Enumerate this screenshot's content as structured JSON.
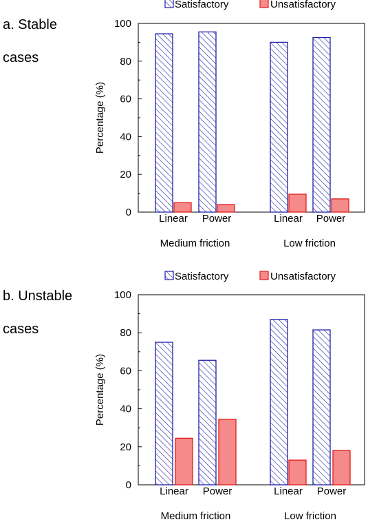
{
  "panels": [
    {
      "label_line1": "a. Stable",
      "label_line2": "cases"
    },
    {
      "label_line1": "b. Unstable",
      "label_line2": "cases"
    }
  ],
  "colors": {
    "satisfactory_stroke": "#1f1fa8",
    "unsatisfactory_fill": "#f58a8a",
    "unsatisfactory_stroke": "#e01c1c"
  },
  "chart_data": [
    {
      "type": "bar",
      "title": "a. Stable cases",
      "ylabel": "Percentage (%)",
      "ylim": [
        0,
        100
      ],
      "yticks": [
        0,
        20,
        40,
        60,
        80,
        100
      ],
      "groups": [
        "Medium friction",
        "Low friction"
      ],
      "categories": [
        "Linear",
        "Power",
        "Linear",
        "Power"
      ],
      "legend_position": "top",
      "series": [
        {
          "name": "Satisfactory",
          "values": [
            94.5,
            95.5,
            90,
            92.5
          ]
        },
        {
          "name": "Unsatisfactory",
          "values": [
            5,
            4,
            9.5,
            7
          ]
        }
      ]
    },
    {
      "type": "bar",
      "title": "b. Unstable cases",
      "ylabel": "Percentage (%)",
      "ylim": [
        0,
        100
      ],
      "yticks": [
        0,
        20,
        40,
        60,
        80,
        100
      ],
      "groups": [
        "Medium friction",
        "Low friction"
      ],
      "categories": [
        "Linear",
        "Power",
        "Linear",
        "Power"
      ],
      "legend_position": "top",
      "series": [
        {
          "name": "Satisfactory",
          "values": [
            75,
            65.5,
            87,
            81.5
          ]
        },
        {
          "name": "Unsatisfactory",
          "values": [
            24.5,
            34.5,
            13,
            18
          ]
        }
      ]
    }
  ]
}
